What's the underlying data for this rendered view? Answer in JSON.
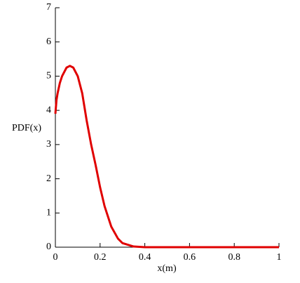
{
  "chart_data": {
    "type": "line",
    "x_label": "x(m)",
    "y_label": "PDF(x)",
    "x": [
      0,
      0.005,
      0.01,
      0.02,
      0.03,
      0.05,
      0.065,
      0.08,
      0.1,
      0.12,
      0.14,
      0.16,
      0.18,
      0.2,
      0.22,
      0.25,
      0.28,
      0.3,
      0.35,
      0.4,
      0.5,
      0.6,
      0.8,
      1
    ],
    "series": [
      {
        "color": "#e00000",
        "values": [
          3.9,
          4.3,
          4.5,
          4.8,
          5.0,
          5.25,
          5.3,
          5.25,
          5.0,
          4.5,
          3.7,
          3.0,
          2.4,
          1.75,
          1.2,
          0.6,
          0.25,
          0.12,
          0.02,
          0,
          0,
          0,
          0,
          0
        ]
      }
    ],
    "xlim": [
      0,
      1
    ],
    "xticks": [
      0,
      0.2,
      0.4,
      0.6,
      0.8,
      1
    ],
    "ylim": [
      0,
      7
    ],
    "yticks": [
      0,
      1,
      2,
      3,
      4,
      5,
      6,
      7
    ]
  }
}
